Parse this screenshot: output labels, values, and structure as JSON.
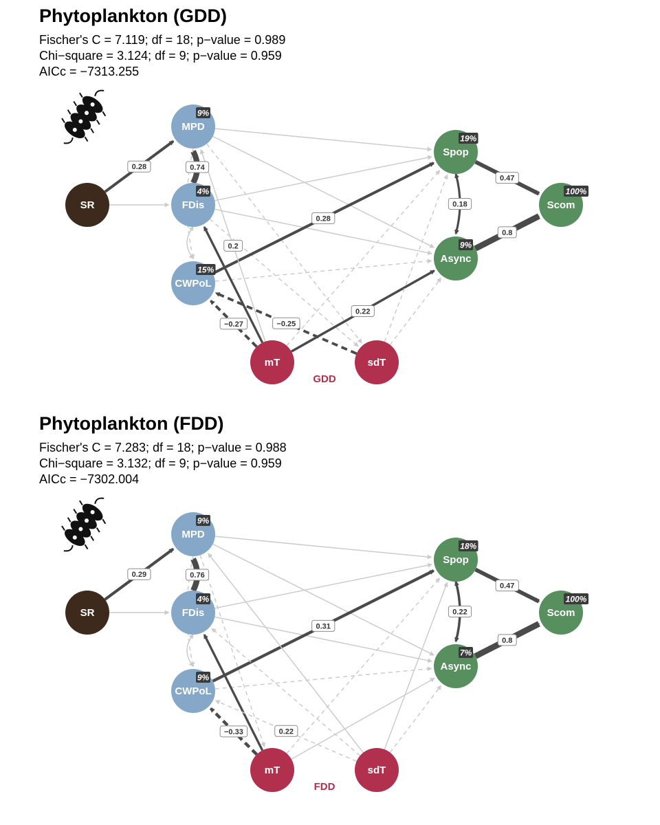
{
  "panels": [
    {
      "id": "gdd",
      "title": "Phytoplankton (GDD)",
      "stats": [
        "Fischer's C = 7.119; df = 18; p−value = 0.989",
        "Chi−square = 3.124; df = 9; p−value = 0.959",
        "AICc = −7313.255"
      ],
      "tag": "GDD",
      "icon": "phytoplankton-chain-icon",
      "nodes": [
        {
          "id": "SR",
          "label": "SR",
          "group": "richness"
        },
        {
          "id": "MPD",
          "label": "MPD",
          "group": "diversity",
          "r2": "9%"
        },
        {
          "id": "FDis",
          "label": "FDis",
          "group": "diversity",
          "r2": "4%"
        },
        {
          "id": "CWPoL",
          "label": "CWPoL",
          "group": "diversity",
          "r2": "15%"
        },
        {
          "id": "Spop",
          "label": "Spop",
          "group": "stability",
          "r2": "19%"
        },
        {
          "id": "Async",
          "label": "Async",
          "group": "stability",
          "r2": "9%"
        },
        {
          "id": "Scom",
          "label": "Scom",
          "group": "stability",
          "r2": "100%"
        },
        {
          "id": "mT",
          "label": "mT",
          "group": "temperature"
        },
        {
          "id": "sdT",
          "label": "sdT",
          "group": "temperature"
        }
      ],
      "edges": [
        {
          "from": "SR",
          "to": "MPD",
          "label": "0.28",
          "sig": true,
          "sign": "+",
          "strength": 0.28
        },
        {
          "from": "SR",
          "to": "FDis",
          "sig": false
        },
        {
          "from": "FDis",
          "to": "MPD",
          "label": "0.74",
          "sig": true,
          "sign": "+",
          "strength": 0.74
        },
        {
          "from": "MPD",
          "to": "CWPoL",
          "sig": false,
          "dashed": true
        },
        {
          "from": "FDis",
          "to": "CWPoL",
          "sig": false,
          "both": true
        },
        {
          "from": "MPD",
          "to": "Spop",
          "sig": false
        },
        {
          "from": "MPD",
          "to": "Async",
          "sig": false
        },
        {
          "from": "MPD",
          "to": "sdT",
          "sig": false,
          "dashed": true
        },
        {
          "from": "FDis",
          "to": "Spop",
          "sig": false
        },
        {
          "from": "FDis",
          "to": "Async",
          "sig": false
        },
        {
          "from": "FDis",
          "to": "sdT",
          "sig": false,
          "dashed": true
        },
        {
          "from": "CWPoL",
          "to": "Spop",
          "label": "0.28",
          "sig": true,
          "sign": "+",
          "strength": 0.28
        },
        {
          "from": "CWPoL",
          "to": "Async",
          "sig": false,
          "dashed": true
        },
        {
          "from": "mT",
          "to": "FDis",
          "sig": true,
          "sign": "+",
          "strength": 0.2
        },
        {
          "from": "mT",
          "to": "MPD",
          "label": "0.2",
          "sig": false
        },
        {
          "from": "mT",
          "to": "CWPoL",
          "label": "−0.27",
          "sig": true,
          "sign": "-",
          "strength": 0.27
        },
        {
          "from": "mT",
          "to": "Async",
          "label": "0.22",
          "sig": true,
          "sign": "+",
          "strength": 0.22
        },
        {
          "from": "mT",
          "to": "Spop",
          "sig": false,
          "dashed": true
        },
        {
          "from": "sdT",
          "to": "CWPoL",
          "label": "−0.25",
          "sig": true,
          "sign": "-",
          "strength": 0.25
        },
        {
          "from": "sdT",
          "to": "Spop",
          "sig": false,
          "dashed": true
        },
        {
          "from": "sdT",
          "to": "Async",
          "sig": false,
          "dashed": true
        },
        {
          "from": "Spop",
          "to": "Scom",
          "label": "0.47",
          "sig": true,
          "sign": "+",
          "strength": 0.47
        },
        {
          "from": "Async",
          "to": "Scom",
          "label": "0.8",
          "sig": true,
          "sign": "+",
          "strength": 0.8
        },
        {
          "from": "Spop",
          "to": "Async",
          "label": "0.18",
          "sig": true,
          "sign": "+",
          "strength": 0.18,
          "both": true
        }
      ]
    },
    {
      "id": "fdd",
      "title": "Phytoplankton (FDD)",
      "stats": [
        "Fischer's C = 7.283; df = 18; p−value = 0.988",
        "Chi−square = 3.132; df = 9; p−value = 0.959",
        "AICc = −7302.004"
      ],
      "tag": "FDD",
      "icon": "phytoplankton-chain-icon",
      "nodes": [
        {
          "id": "SR",
          "label": "SR",
          "group": "richness"
        },
        {
          "id": "MPD",
          "label": "MPD",
          "group": "diversity",
          "r2": "9%"
        },
        {
          "id": "FDis",
          "label": "FDis",
          "group": "diversity",
          "r2": "4%"
        },
        {
          "id": "CWPoL",
          "label": "CWPoL",
          "group": "diversity",
          "r2": "9%"
        },
        {
          "id": "Spop",
          "label": "Spop",
          "group": "stability",
          "r2": "18%"
        },
        {
          "id": "Async",
          "label": "Async",
          "group": "stability",
          "r2": "7%"
        },
        {
          "id": "Scom",
          "label": "Scom",
          "group": "stability",
          "r2": "100%"
        },
        {
          "id": "mT",
          "label": "mT",
          "group": "temperature"
        },
        {
          "id": "sdT",
          "label": "sdT",
          "group": "temperature"
        }
      ],
      "edges": [
        {
          "from": "SR",
          "to": "MPD",
          "label": "0.29",
          "sig": true,
          "sign": "+",
          "strength": 0.29
        },
        {
          "from": "SR",
          "to": "FDis",
          "sig": false
        },
        {
          "from": "FDis",
          "to": "MPD",
          "label": "0.76",
          "sig": true,
          "sign": "+",
          "strength": 0.76
        },
        {
          "from": "MPD",
          "to": "CWPoL",
          "sig": false,
          "dashed": true
        },
        {
          "from": "FDis",
          "to": "CWPoL",
          "sig": false,
          "both": true
        },
        {
          "from": "MPD",
          "to": "Spop",
          "sig": false
        },
        {
          "from": "MPD",
          "to": "Async",
          "sig": false
        },
        {
          "from": "MPD",
          "to": "mT",
          "sig": false,
          "dashed": true
        },
        {
          "from": "FDis",
          "to": "Spop",
          "sig": false
        },
        {
          "from": "FDis",
          "to": "Async",
          "sig": false
        },
        {
          "from": "CWPoL",
          "to": "Spop",
          "label": "0.31",
          "sig": true,
          "sign": "+",
          "strength": 0.31
        },
        {
          "from": "CWPoL",
          "to": "Async",
          "sig": false,
          "dashed": true
        },
        {
          "from": "mT",
          "to": "FDis",
          "sig": true,
          "sign": "+",
          "strength": 0.2
        },
        {
          "from": "mT",
          "to": "CWPoL",
          "label": "−0.33",
          "sig": true,
          "sign": "-",
          "strength": 0.33
        },
        {
          "from": "mT",
          "to": "Spop",
          "sig": false,
          "dashed": true
        },
        {
          "from": "mT",
          "to": "Async",
          "sig": false
        },
        {
          "from": "sdT",
          "to": "FDis",
          "sig": false,
          "dashed": true
        },
        {
          "from": "sdT",
          "to": "MPD",
          "sig": false
        },
        {
          "from": "sdT",
          "to": "CWPoL",
          "label": "0.22",
          "sig": false,
          "dashed": true
        },
        {
          "from": "sdT",
          "to": "Spop",
          "sig": false
        },
        {
          "from": "sdT",
          "to": "Async",
          "sig": false,
          "dashed": true
        },
        {
          "from": "Spop",
          "to": "Scom",
          "label": "0.47",
          "sig": true,
          "sign": "+",
          "strength": 0.47
        },
        {
          "from": "Async",
          "to": "Scom",
          "label": "0.8",
          "sig": true,
          "sign": "+",
          "strength": 0.8
        },
        {
          "from": "Spop",
          "to": "Async",
          "label": "0.22",
          "sig": true,
          "sign": "+",
          "strength": 0.22,
          "both": true
        }
      ]
    }
  ],
  "colors": {
    "richness": "#3e2a1c",
    "diversity": "#86a8c8",
    "stability": "#578f5f",
    "temperature": "#b0304e",
    "significant_edge": "#4a4a4a",
    "nonsignificant_edge": "#cccccc",
    "r2_badge": "#3a3a3a",
    "tag_text": "#b0304e"
  }
}
